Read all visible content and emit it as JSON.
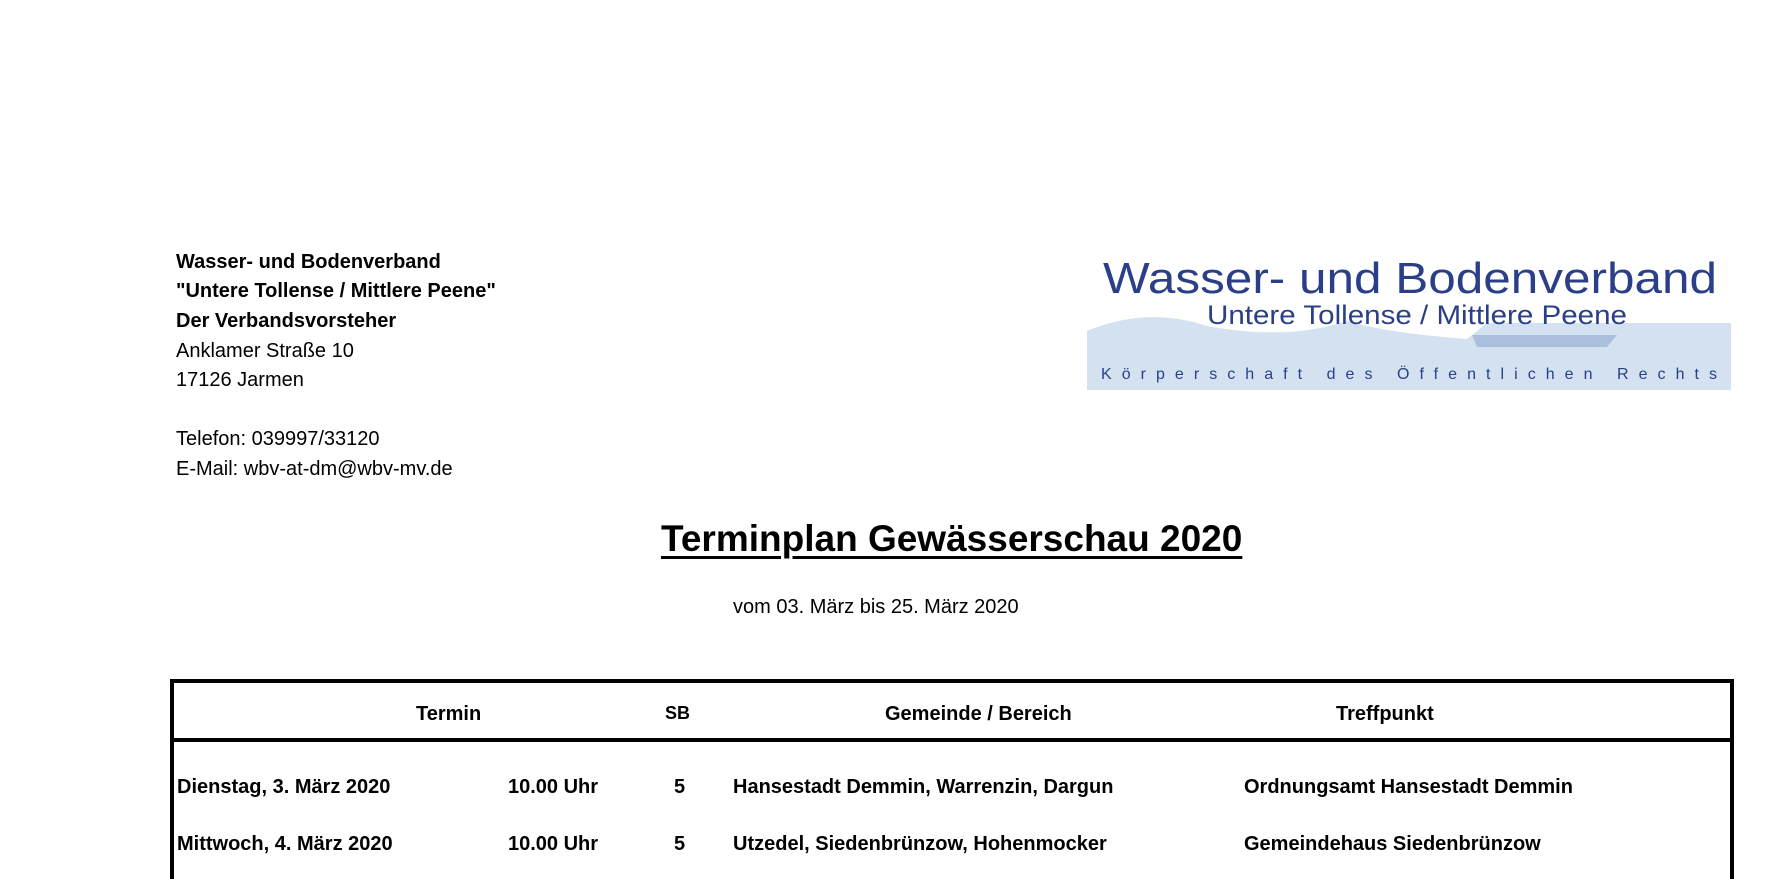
{
  "sender": {
    "line1": "Wasser- und Bodenverband",
    "line2": "\"Untere Tollense / Mittlere Peene\"",
    "line3": "Der Verbandsvorsteher",
    "street": "Anklamer Straße 10",
    "city": "17126 Jarmen",
    "phone": "Telefon: 039997/33120",
    "email": "E-Mail: wbv-at-dm@wbv-mv.de"
  },
  "logo": {
    "line1": "Wasser- und Bodenverband",
    "line2": "Untere Tollense / Mittlere Peene",
    "line3": "Körperschaft des Öffentlichen Rechts",
    "color": "#2a4a9a",
    "wave_color": "#c9d9ee"
  },
  "title": "Terminplan Gewässerschau 2020",
  "subtitle": "vom 03. März bis 25. März 2020",
  "table": {
    "headers": {
      "termin": "Termin",
      "sb": "SB",
      "gemeinde": "Gemeinde / Bereich",
      "treffpunkt": "Treffpunkt"
    },
    "rows": [
      {
        "date": "Dienstag, 3. März 2020",
        "time": "10.00 Uhr",
        "sb": "5",
        "gemeinde": "Hansestadt Demmin, Warrenzin, Dargun",
        "treffpunkt": "Ordnungsamt Hansestadt Demmin"
      },
      {
        "date": "Mittwoch, 4. März 2020",
        "time": "10.00 Uhr",
        "sb": "5",
        "gemeinde": "Utzedel, Siedenbrünzow, Hohenmocker",
        "treffpunkt": "Gemeindehaus Siedenbrünzow"
      }
    ]
  }
}
